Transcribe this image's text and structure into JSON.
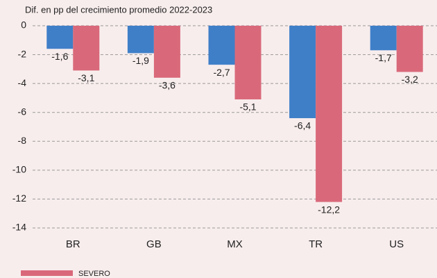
{
  "chart_data": {
    "type": "bar",
    "title": "Dif. en pp del crecimiento promedio 2022-2023",
    "categories": [
      "BR",
      "GB",
      "MX",
      "TR",
      "US"
    ],
    "series": [
      {
        "color": "#3f7fc8",
        "values": [
          -1.6,
          -1.9,
          -2.7,
          -6.4,
          -1.7
        ],
        "value_labels": [
          "-1,6",
          "-1,9",
          "-2,7",
          "-6,4",
          "-1,7"
        ]
      },
      {
        "name": "SEVERO",
        "color": "#d9697a",
        "values": [
          -3.1,
          -3.6,
          -5.1,
          -12.2,
          -3.2
        ],
        "value_labels": [
          "-3,1",
          "-3,6",
          "-5,1",
          "-12,2",
          "-3,2"
        ]
      }
    ],
    "ylim": [
      -14,
      0
    ],
    "yticks": [
      0,
      -2,
      -4,
      -6,
      -8,
      -10,
      -12,
      -14
    ],
    "grid": true
  }
}
